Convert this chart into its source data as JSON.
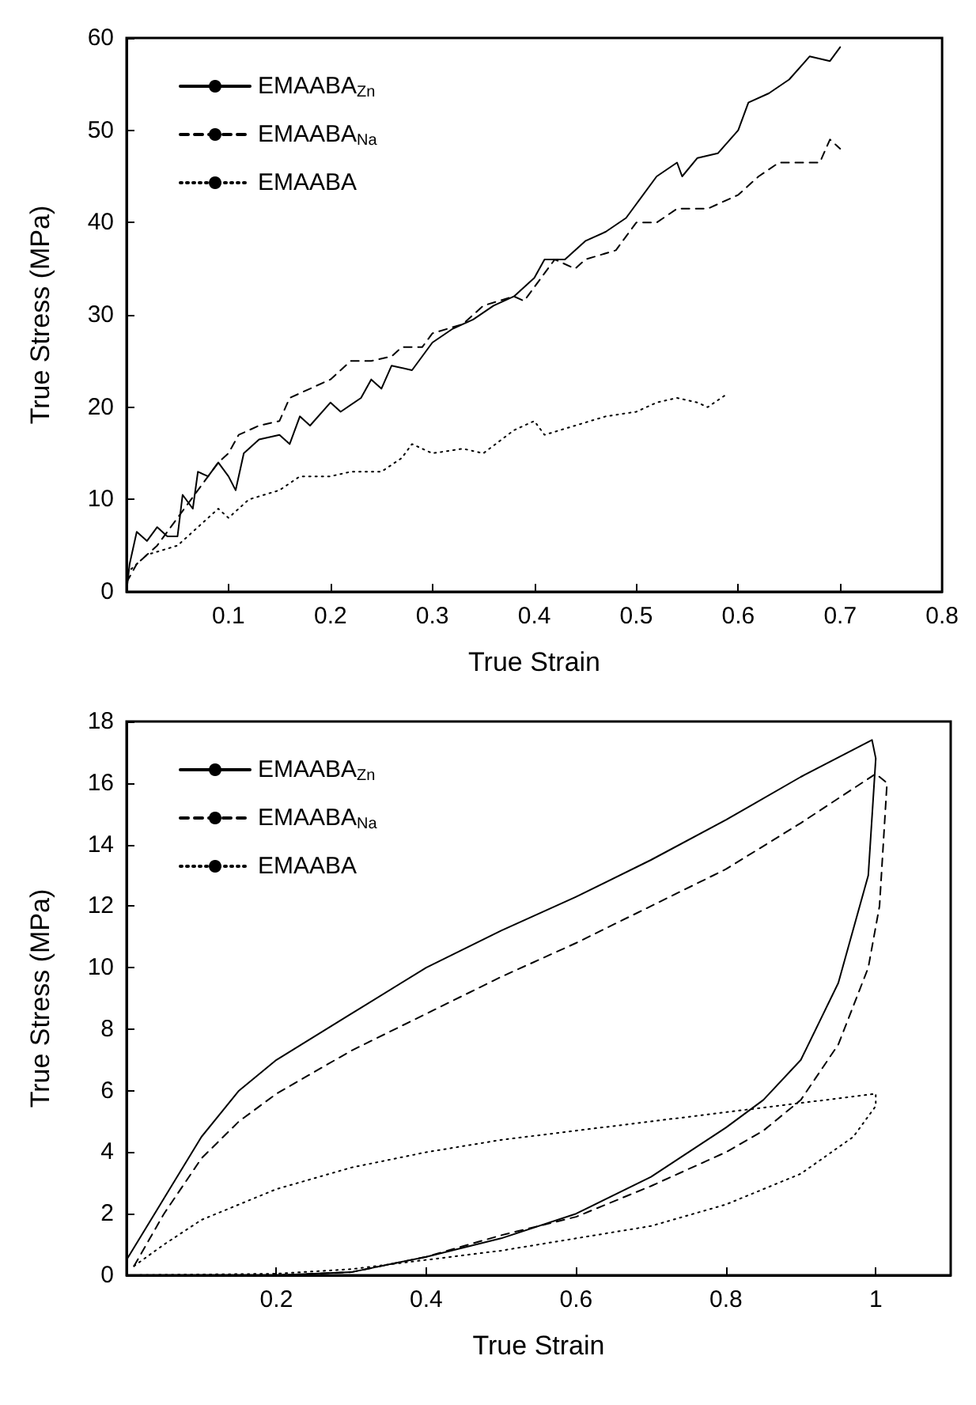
{
  "chart_data": [
    {
      "type": "line",
      "xlabel": "True Strain",
      "ylabel": "True Stress (MPa)",
      "xlim": [
        0,
        0.8
      ],
      "xticks": [
        0.1,
        0.2,
        0.3,
        0.4,
        0.5,
        0.6,
        0.7,
        0.8
      ],
      "ylim": [
        0,
        60
      ],
      "yticks": [
        0,
        10,
        20,
        30,
        40,
        50,
        60
      ],
      "grid": false,
      "legend": "top left",
      "marker": "none",
      "series": [
        {
          "name": "EMAABA$_{Zn}$",
          "color": "#000000",
          "line_style": "solid",
          "x": [
            0,
            0.003,
            0.01,
            0.02,
            0.03,
            0.04,
            0.05,
            0.055,
            0.065,
            0.07,
            0.08,
            0.09,
            0.1,
            0.107,
            0.115,
            0.13,
            0.15,
            0.16,
            0.17,
            0.18,
            0.2,
            0.21,
            0.23,
            0.24,
            0.25,
            0.26,
            0.28,
            0.3,
            0.32,
            0.34,
            0.36,
            0.38,
            0.4,
            0.41,
            0.43,
            0.45,
            0.47,
            0.49,
            0.5,
            0.52,
            0.54,
            0.545,
            0.56,
            0.58,
            0.6,
            0.61,
            0.63,
            0.65,
            0.67,
            0.69,
            0.7
          ],
          "values": [
            0,
            3,
            6.5,
            5.5,
            7,
            6,
            6,
            10.5,
            9,
            13,
            12.5,
            14,
            12.5,
            11,
            15,
            16.5,
            17,
            16,
            19,
            18,
            20.5,
            19.5,
            21,
            23,
            22,
            24.5,
            24,
            27,
            28.5,
            29.5,
            31,
            32,
            34,
            36,
            36,
            38,
            39,
            40.5,
            42,
            45,
            46.5,
            45,
            47,
            47.5,
            50,
            53,
            54,
            55.5,
            58,
            57.5,
            59
          ]
        },
        {
          "name": "EMAABA$_{Na}$",
          "color": "#000000",
          "line_style": "dashed",
          "x": [
            0,
            0.01,
            0.02,
            0.03,
            0.05,
            0.07,
            0.09,
            0.1,
            0.11,
            0.13,
            0.15,
            0.16,
            0.18,
            0.2,
            0.22,
            0.24,
            0.26,
            0.27,
            0.29,
            0.3,
            0.33,
            0.35,
            0.38,
            0.39,
            0.4,
            0.42,
            0.44,
            0.45,
            0.48,
            0.5,
            0.52,
            0.54,
            0.57,
            0.6,
            0.62,
            0.64,
            0.66,
            0.68,
            0.69,
            0.7
          ],
          "values": [
            1,
            3,
            4,
            5,
            8,
            11,
            14,
            15,
            17,
            18,
            18.5,
            21,
            22,
            23,
            25,
            25,
            25.5,
            26.5,
            26.5,
            28,
            29,
            31,
            32,
            31.5,
            33,
            36,
            35,
            36,
            37,
            40,
            40,
            41.5,
            41.5,
            43,
            45,
            46.5,
            46.5,
            46.5,
            49,
            48
          ]
        },
        {
          "name": "EMAABA",
          "color": "#000000",
          "line_style": "dotted",
          "x": [
            0,
            0.02,
            0.05,
            0.07,
            0.09,
            0.1,
            0.12,
            0.15,
            0.17,
            0.2,
            0.22,
            0.25,
            0.27,
            0.28,
            0.3,
            0.33,
            0.35,
            0.38,
            0.4,
            0.41,
            0.44,
            0.47,
            0.5,
            0.52,
            0.54,
            0.56,
            0.57,
            0.59
          ],
          "values": [
            2,
            4,
            5,
            7,
            9,
            8,
            10,
            11,
            12.5,
            12.5,
            13,
            13,
            14.5,
            16,
            15,
            15.5,
            15,
            17.5,
            18.5,
            17,
            18,
            19,
            19.5,
            20.5,
            21,
            20.5,
            20,
            21.5
          ]
        }
      ]
    },
    {
      "type": "line",
      "xlabel": "True Strain",
      "ylabel": "True Stress (MPa)",
      "xlim": [
        0,
        1.1
      ],
      "xticks": [
        0.2,
        0.4,
        0.6,
        0.8,
        1
      ],
      "ylim": [
        0,
        18
      ],
      "yticks": [
        0,
        2,
        4,
        6,
        8,
        10,
        12,
        14,
        16,
        18
      ],
      "grid": false,
      "legend": "top left",
      "marker": "none",
      "series": [
        {
          "name": "EMAABA$_{Zn}$",
          "color": "#000000",
          "line_style": "solid",
          "x": [
            0,
            0.05,
            0.1,
            0.15,
            0.2,
            0.3,
            0.4,
            0.5,
            0.6,
            0.7,
            0.8,
            0.9,
            0.995,
            1.0,
            0.99,
            0.95,
            0.9,
            0.85,
            0.8,
            0.7,
            0.6,
            0.5,
            0.4,
            0.3,
            0.2,
            0
          ],
          "values": [
            0.5,
            2.5,
            4.5,
            6,
            7,
            8.5,
            10,
            11.2,
            12.3,
            13.5,
            14.8,
            16.2,
            17.4,
            16.8,
            13,
            9.5,
            7,
            5.7,
            4.8,
            3.2,
            2,
            1.2,
            0.6,
            0.1,
            0,
            0
          ]
        },
        {
          "name": "EMAABA$_{Na}$",
          "color": "#000000",
          "line_style": "dashed",
          "x": [
            0.01,
            0.05,
            0.1,
            0.15,
            0.2,
            0.3,
            0.4,
            0.5,
            0.6,
            0.7,
            0.8,
            0.9,
            1.0,
            1.015,
            1.005,
            0.99,
            0.95,
            0.9,
            0.85,
            0.8,
            0.7,
            0.6,
            0.5,
            0.4,
            0.3,
            0.2,
            0
          ],
          "values": [
            0.3,
            2,
            3.8,
            5,
            5.9,
            7.3,
            8.5,
            9.7,
            10.8,
            12,
            13.2,
            14.7,
            16.3,
            16,
            12,
            10,
            7.5,
            5.7,
            4.7,
            4,
            2.9,
            1.9,
            1.3,
            0.6,
            0.1,
            0,
            0
          ]
        },
        {
          "name": "EMAABA",
          "color": "#000000",
          "line_style": "dotted",
          "x": [
            0.01,
            0.05,
            0.1,
            0.2,
            0.3,
            0.4,
            0.5,
            0.6,
            0.7,
            0.8,
            0.9,
            1.0,
            1.0,
            0.97,
            0.9,
            0.8,
            0.7,
            0.6,
            0.5,
            0.4,
            0.3,
            0.2,
            0
          ],
          "values": [
            0.3,
            1,
            1.8,
            2.8,
            3.5,
            4,
            4.4,
            4.7,
            5,
            5.3,
            5.6,
            5.9,
            5.5,
            4.5,
            3.3,
            2.3,
            1.6,
            1.2,
            0.8,
            0.5,
            0.2,
            0.05,
            0
          ]
        }
      ]
    }
  ]
}
